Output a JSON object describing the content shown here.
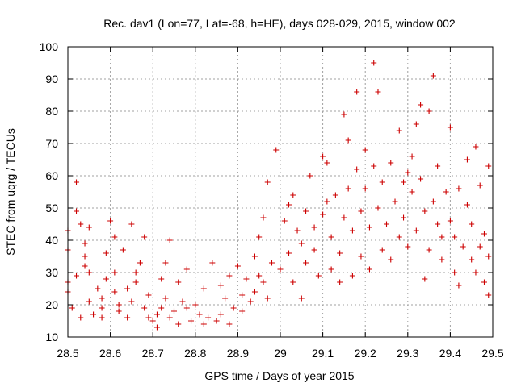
{
  "chart_data": {
    "type": "scatter",
    "title": "Rec. dav1 (Lon=77, Lat=-68, h=HE), days 028-029, 2015, window 002",
    "xlabel": "GPS time / Days of year 2015",
    "ylabel": "STEC from uqrg / TECUs",
    "xlim": [
      28.5,
      29.5
    ],
    "ylim": [
      10,
      100
    ],
    "x_ticks": [
      28.5,
      28.6,
      28.7,
      28.8,
      28.9,
      29,
      29.1,
      29.2,
      29.3,
      29.4,
      29.5
    ],
    "x_tick_labels": [
      "28.5",
      "28.6",
      "28.7",
      "28.8",
      "28.9",
      "29",
      "29.1",
      "29.2",
      "29.3",
      "29.4",
      "29.5"
    ],
    "y_ticks": [
      10,
      20,
      30,
      40,
      50,
      60,
      70,
      80,
      90,
      100
    ],
    "y_tick_labels": [
      "10",
      "20",
      "30",
      "40",
      "50",
      "60",
      "70",
      "80",
      "90",
      "100"
    ],
    "grid": true,
    "marker": "+",
    "color": "#cc0000",
    "points": [
      [
        28.5,
        43
      ],
      [
        28.5,
        37
      ],
      [
        28.5,
        27
      ],
      [
        28.5,
        24
      ],
      [
        28.51,
        19
      ],
      [
        28.52,
        29
      ],
      [
        28.52,
        58
      ],
      [
        28.52,
        49
      ],
      [
        28.53,
        45
      ],
      [
        28.53,
        16
      ],
      [
        28.54,
        39
      ],
      [
        28.54,
        35
      ],
      [
        28.54,
        32
      ],
      [
        28.55,
        44
      ],
      [
        28.55,
        30
      ],
      [
        28.55,
        21
      ],
      [
        28.56,
        17
      ],
      [
        28.57,
        25
      ],
      [
        28.58,
        19
      ],
      [
        28.58,
        22
      ],
      [
        28.58,
        16
      ],
      [
        28.59,
        28
      ],
      [
        28.59,
        36
      ],
      [
        28.6,
        46
      ],
      [
        28.61,
        41
      ],
      [
        28.61,
        30
      ],
      [
        28.61,
        24
      ],
      [
        28.62,
        18
      ],
      [
        28.62,
        20
      ],
      [
        28.63,
        37
      ],
      [
        28.64,
        25
      ],
      [
        28.64,
        16
      ],
      [
        28.65,
        21
      ],
      [
        28.65,
        45
      ],
      [
        28.66,
        30
      ],
      [
        28.66,
        27
      ],
      [
        28.67,
        33
      ],
      [
        28.68,
        19
      ],
      [
        28.68,
        41
      ],
      [
        28.69,
        23
      ],
      [
        28.69,
        16
      ],
      [
        28.7,
        15
      ],
      [
        28.71,
        13
      ],
      [
        28.71,
        17
      ],
      [
        28.72,
        19
      ],
      [
        28.72,
        28
      ],
      [
        28.73,
        33
      ],
      [
        28.73,
        22
      ],
      [
        28.74,
        40
      ],
      [
        28.74,
        16
      ],
      [
        28.75,
        18
      ],
      [
        28.76,
        27
      ],
      [
        28.76,
        14
      ],
      [
        28.77,
        21
      ],
      [
        28.78,
        19
      ],
      [
        28.78,
        31
      ],
      [
        28.79,
        15
      ],
      [
        28.8,
        20
      ],
      [
        28.81,
        17
      ],
      [
        28.82,
        14
      ],
      [
        28.82,
        25
      ],
      [
        28.83,
        16
      ],
      [
        28.84,
        33
      ],
      [
        28.85,
        15
      ],
      [
        28.86,
        17
      ],
      [
        28.86,
        26
      ],
      [
        28.87,
        22
      ],
      [
        28.88,
        14
      ],
      [
        28.88,
        29
      ],
      [
        28.89,
        19
      ],
      [
        28.9,
        32
      ],
      [
        28.91,
        23
      ],
      [
        28.91,
        18
      ],
      [
        28.92,
        28
      ],
      [
        28.93,
        21
      ],
      [
        28.94,
        35
      ],
      [
        28.94,
        24
      ],
      [
        28.95,
        29
      ],
      [
        28.95,
        41
      ],
      [
        28.96,
        47
      ],
      [
        28.96,
        27
      ],
      [
        28.97,
        22
      ],
      [
        28.97,
        58
      ],
      [
        28.98,
        33
      ],
      [
        28.99,
        68
      ],
      [
        29.0,
        31
      ],
      [
        29.01,
        46
      ],
      [
        29.02,
        51
      ],
      [
        29.02,
        36
      ],
      [
        29.03,
        54
      ],
      [
        29.03,
        27
      ],
      [
        29.04,
        43
      ],
      [
        29.05,
        39
      ],
      [
        29.05,
        22
      ],
      [
        29.06,
        33
      ],
      [
        29.06,
        49
      ],
      [
        29.07,
        60
      ],
      [
        29.08,
        44
      ],
      [
        29.08,
        37
      ],
      [
        29.09,
        29
      ],
      [
        29.1,
        48
      ],
      [
        29.1,
        66
      ],
      [
        29.11,
        52
      ],
      [
        29.11,
        64
      ],
      [
        29.12,
        41
      ],
      [
        29.12,
        31
      ],
      [
        29.13,
        54
      ],
      [
        29.14,
        27
      ],
      [
        29.14,
        36
      ],
      [
        29.15,
        79
      ],
      [
        29.15,
        47
      ],
      [
        29.16,
        71
      ],
      [
        29.16,
        56
      ],
      [
        29.17,
        43
      ],
      [
        29.17,
        29
      ],
      [
        29.18,
        86
      ],
      [
        29.18,
        62
      ],
      [
        29.19,
        49
      ],
      [
        29.19,
        35
      ],
      [
        29.2,
        68
      ],
      [
        29.2,
        56
      ],
      [
        29.21,
        44
      ],
      [
        29.21,
        31
      ],
      [
        29.22,
        95
      ],
      [
        29.22,
        63
      ],
      [
        29.23,
        50
      ],
      [
        29.23,
        86
      ],
      [
        29.24,
        37
      ],
      [
        29.24,
        58
      ],
      [
        29.25,
        45
      ],
      [
        29.26,
        34
      ],
      [
        29.26,
        64
      ],
      [
        29.27,
        52
      ],
      [
        29.28,
        74
      ],
      [
        29.28,
        41
      ],
      [
        29.29,
        58
      ],
      [
        29.29,
        47
      ],
      [
        29.3,
        61
      ],
      [
        29.3,
        38
      ],
      [
        29.31,
        55
      ],
      [
        29.31,
        66
      ],
      [
        29.32,
        76
      ],
      [
        29.32,
        43
      ],
      [
        29.33,
        82
      ],
      [
        29.33,
        59
      ],
      [
        29.34,
        49
      ],
      [
        29.34,
        28
      ],
      [
        29.35,
        80
      ],
      [
        29.35,
        37
      ],
      [
        29.36,
        91
      ],
      [
        29.36,
        52
      ],
      [
        29.37,
        45
      ],
      [
        29.37,
        63
      ],
      [
        29.38,
        41
      ],
      [
        29.38,
        34
      ],
      [
        29.39,
        55
      ],
      [
        29.4,
        75
      ],
      [
        29.4,
        46
      ],
      [
        29.41,
        30
      ],
      [
        29.41,
        41
      ],
      [
        29.42,
        56
      ],
      [
        29.42,
        26
      ],
      [
        29.43,
        38
      ],
      [
        29.44,
        51
      ],
      [
        29.44,
        65
      ],
      [
        29.45,
        34
      ],
      [
        29.45,
        45
      ],
      [
        29.46,
        69
      ],
      [
        29.46,
        30
      ],
      [
        29.47,
        38
      ],
      [
        29.47,
        57
      ],
      [
        29.48,
        27
      ],
      [
        29.48,
        42
      ],
      [
        29.49,
        63
      ],
      [
        29.49,
        35
      ],
      [
        29.49,
        23
      ]
    ]
  }
}
